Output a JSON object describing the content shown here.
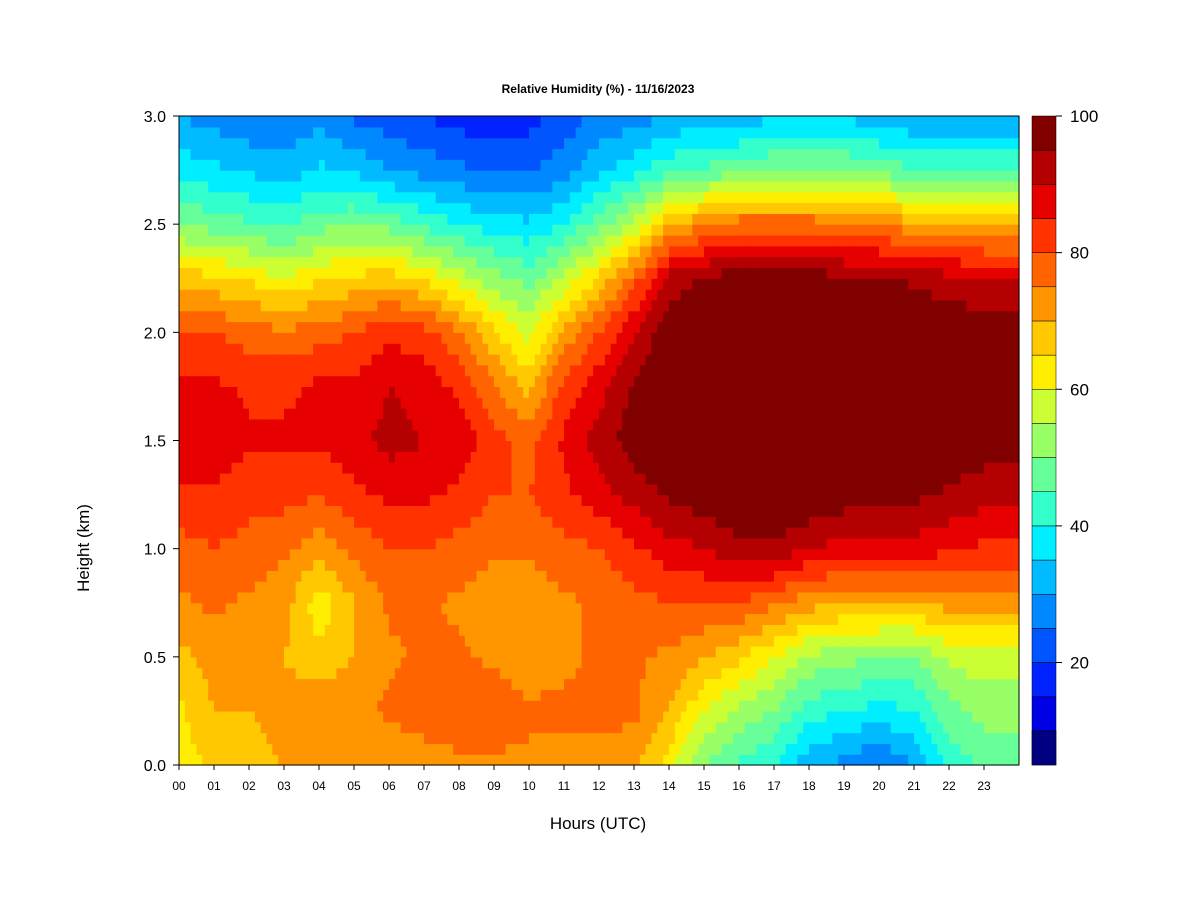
{
  "chart_data": {
    "type": "heatmap",
    "title": "Relative Humidity (%) - 11/16/2023",
    "xlabel": "Hours (UTC)",
    "ylabel": "Height (km)",
    "x_ticks": [
      "00",
      "01",
      "02",
      "03",
      "04",
      "05",
      "06",
      "07",
      "08",
      "09",
      "10",
      "11",
      "12",
      "13",
      "14",
      "15",
      "16",
      "17",
      "18",
      "19",
      "20",
      "21",
      "22",
      "23"
    ],
    "xlim": [
      0,
      24
    ],
    "y_ticks": [
      0.0,
      0.5,
      1.0,
      1.5,
      2.0,
      2.5,
      3.0
    ],
    "y_tick_labels": [
      "0.0",
      "0.5",
      "1.0",
      "1.5",
      "2.0",
      "2.5",
      "3.0"
    ],
    "ylim": [
      0,
      3
    ],
    "colorbar": {
      "levels": [
        5,
        10,
        15,
        20,
        25,
        30,
        35,
        40,
        45,
        50,
        55,
        60,
        65,
        70,
        75,
        80,
        85,
        90,
        95,
        100
      ],
      "tick_values": [
        20,
        40,
        60,
        80,
        100
      ],
      "tick_labels": [
        "20",
        "40",
        "60",
        "80",
        "100"
      ],
      "colors": [
        "#000080",
        "#0000b4",
        "#0000e6",
        "#0022ff",
        "#0055ff",
        "#0088ff",
        "#00bbff",
        "#00eeff",
        "#33ffcc",
        "#66ff99",
        "#99ff66",
        "#ccff33",
        "#ffee00",
        "#ffc800",
        "#ff9600",
        "#ff6400",
        "#ff3200",
        "#e60000",
        "#b40000",
        "#800000"
      ]
    },
    "heights_km": [
      0.0,
      0.25,
      0.5,
      0.75,
      1.0,
      1.25,
      1.5,
      1.75,
      2.0,
      2.25,
      2.5,
      2.75,
      3.0
    ],
    "profiles": [
      {
        "hour": 0,
        "rh": [
          62,
          64,
          68,
          74,
          78,
          84,
          88,
          86,
          80,
          68,
          50,
          38,
          30
        ]
      },
      {
        "hour": 1,
        "rh": [
          66,
          70,
          72,
          76,
          80,
          84,
          88,
          86,
          80,
          66,
          48,
          36,
          28
        ]
      },
      {
        "hour": 2,
        "rh": [
          68,
          70,
          70,
          74,
          78,
          82,
          86,
          84,
          78,
          64,
          46,
          34,
          26
        ]
      },
      {
        "hour": 3,
        "rh": [
          70,
          72,
          70,
          72,
          76,
          82,
          86,
          84,
          76,
          60,
          44,
          32,
          26
        ]
      },
      {
        "hour": 4,
        "rh": [
          70,
          74,
          66,
          62,
          72,
          80,
          86,
          86,
          78,
          64,
          48,
          36,
          28
        ]
      },
      {
        "hour": 5,
        "rh": [
          70,
          74,
          70,
          70,
          76,
          84,
          88,
          86,
          80,
          66,
          50,
          34,
          24
        ]
      },
      {
        "hour": 6,
        "rh": [
          70,
          76,
          74,
          76,
          80,
          86,
          92,
          90,
          84,
          68,
          48,
          30,
          22
        ]
      },
      {
        "hour": 7,
        "rh": [
          72,
          78,
          76,
          76,
          80,
          86,
          90,
          88,
          82,
          64,
          44,
          28,
          20
        ]
      },
      {
        "hour": 8,
        "rh": [
          74,
          78,
          76,
          74,
          78,
          84,
          88,
          84,
          76,
          58,
          40,
          26,
          18
        ]
      },
      {
        "hour": 9,
        "rh": [
          74,
          78,
          74,
          72,
          76,
          80,
          82,
          76,
          66,
          52,
          38,
          24,
          16
        ]
      },
      {
        "hour": 10,
        "rh": [
          74,
          76,
          72,
          72,
          76,
          80,
          78,
          68,
          58,
          48,
          36,
          24,
          18
        ]
      },
      {
        "hour": 11,
        "rh": [
          74,
          76,
          74,
          74,
          78,
          84,
          86,
          82,
          72,
          56,
          40,
          28,
          22
        ]
      },
      {
        "hour": 12,
        "rh": [
          74,
          76,
          76,
          76,
          80,
          88,
          92,
          88,
          80,
          66,
          48,
          34,
          26
        ]
      },
      {
        "hour": 13,
        "rh": [
          72,
          76,
          76,
          78,
          84,
          92,
          98,
          96,
          90,
          78,
          56,
          38,
          28
        ]
      },
      {
        "hour": 14,
        "rh": [
          62,
          70,
          74,
          80,
          88,
          96,
          100,
          100,
          98,
          92,
          70,
          44,
          30
        ]
      },
      {
        "hour": 15,
        "rh": [
          50,
          60,
          70,
          80,
          90,
          98,
          100,
          100,
          100,
          96,
          74,
          46,
          32
        ]
      },
      {
        "hour": 16,
        "rh": [
          44,
          54,
          66,
          80,
          94,
          100,
          100,
          100,
          100,
          98,
          78,
          48,
          32
        ]
      },
      {
        "hour": 17,
        "rh": [
          40,
          50,
          60,
          76,
          94,
          100,
          100,
          100,
          100,
          98,
          78,
          50,
          34
        ]
      },
      {
        "hour": 18,
        "rh": [
          32,
          42,
          54,
          72,
          90,
          100,
          100,
          100,
          100,
          98,
          78,
          50,
          34
        ]
      },
      {
        "hour": 19,
        "rh": [
          28,
          40,
          52,
          70,
          88,
          98,
          100,
          100,
          100,
          96,
          76,
          50,
          34
        ]
      },
      {
        "hour": 20,
        "rh": [
          24,
          38,
          50,
          70,
          88,
          98,
          100,
          100,
          100,
          96,
          74,
          48,
          32
        ]
      },
      {
        "hour": 21,
        "rh": [
          30,
          40,
          50,
          70,
          88,
          96,
          100,
          100,
          100,
          94,
          72,
          46,
          30
        ]
      },
      {
        "hour": 22,
        "rh": [
          42,
          48,
          56,
          72,
          86,
          94,
          100,
          100,
          100,
          92,
          70,
          46,
          30
        ]
      },
      {
        "hour": 23,
        "rh": [
          46,
          52,
          58,
          72,
          84,
          92,
          98,
          100,
          98,
          90,
          70,
          46,
          30
        ]
      },
      {
        "hour": 24,
        "rh": [
          46,
          52,
          58,
          72,
          84,
          92,
          98,
          100,
          98,
          90,
          70,
          46,
          30
        ]
      }
    ]
  }
}
